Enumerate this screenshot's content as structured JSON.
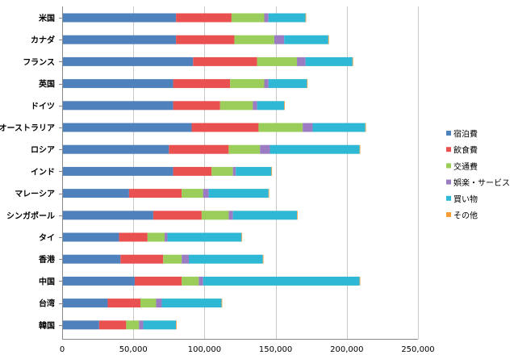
{
  "chart_data": {
    "type": "bar",
    "orientation": "horizontal",
    "stacked": true,
    "categories": [
      "米国",
      "カナダ",
      "フランス",
      "英国",
      "ドイツ",
      "オーストラリア",
      "ロシア",
      "インド",
      "マレーシア",
      "シンガポール",
      "タイ",
      "香港",
      "中国",
      "台湾",
      "韓国"
    ],
    "series": [
      {
        "name": "宿泊費",
        "color": "#4f81bd",
        "values": [
          80000,
          80000,
          92000,
          78000,
          78000,
          91000,
          75000,
          78000,
          47000,
          64000,
          40000,
          41000,
          51000,
          32000,
          26000
        ]
      },
      {
        "name": "飲食費",
        "color": "#e8514f",
        "values": [
          39000,
          41000,
          45000,
          40000,
          33000,
          47000,
          42000,
          27000,
          37000,
          34000,
          20000,
          30000,
          33000,
          23000,
          19000
        ]
      },
      {
        "name": "交通費",
        "color": "#9acd5a",
        "values": [
          23000,
          28000,
          28000,
          24000,
          23000,
          31000,
          22000,
          15000,
          15000,
          19000,
          12000,
          13000,
          12000,
          11000,
          9000
        ]
      },
      {
        "name": "娯楽・サービス",
        "color": "#9b7bc2",
        "values": [
          3000,
          7000,
          6000,
          3000,
          3000,
          7000,
          7000,
          2000,
          4000,
          3000,
          2000,
          5000,
          3000,
          4000,
          3000
        ]
      },
      {
        "name": "買い物",
        "color": "#2fb8d6",
        "values": [
          26000,
          31000,
          33000,
          27000,
          19000,
          37000,
          63000,
          25000,
          42000,
          45000,
          52000,
          52000,
          110000,
          42000,
          23000
        ]
      },
      {
        "name": "その他",
        "color": "#f59e36",
        "values": [
          300,
          300,
          300,
          300,
          300,
          300,
          300,
          300,
          300,
          300,
          300,
          300,
          300,
          300,
          300
        ]
      }
    ],
    "xlim": [
      0,
      250000
    ],
    "xticks": [
      "0",
      "50,000",
      "100,000",
      "150,000",
      "200,000",
      "250,000"
    ],
    "xtick_values": [
      0,
      50000,
      100000,
      150000,
      200000,
      250000
    ],
    "title": "",
    "xlabel": "",
    "ylabel": "",
    "grid": true,
    "legend_position": "right"
  }
}
